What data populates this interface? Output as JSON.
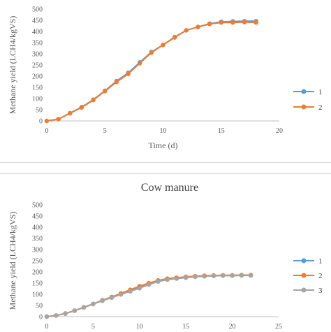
{
  "chart_data": [
    {
      "type": "line",
      "title": "",
      "xlabel": "Time  (d)",
      "ylabel": "Methane yield (LCH4/kgVS)",
      "xlim": [
        0,
        20
      ],
      "ylim": [
        0,
        500
      ],
      "xticks": [
        0,
        5,
        10,
        15,
        20
      ],
      "yticks": [
        0,
        50,
        100,
        150,
        200,
        250,
        300,
        350,
        400,
        450,
        500
      ],
      "grid": false,
      "legend": "right",
      "series": [
        {
          "name": "1",
          "color": "#5b9bd5",
          "x": [
            0,
            1,
            2,
            3,
            4,
            5,
            6,
            7,
            8,
            9,
            10,
            11,
            12,
            13,
            14,
            15,
            16,
            17,
            18
          ],
          "y": [
            0,
            8,
            35,
            62,
            95,
            135,
            178,
            215,
            262,
            308,
            340,
            375,
            405,
            420,
            435,
            443,
            445,
            446,
            446
          ]
        },
        {
          "name": "2",
          "color": "#ed7d31",
          "x": [
            0,
            1,
            2,
            3,
            4,
            5,
            6,
            7,
            8,
            9,
            10,
            11,
            12,
            13,
            14,
            15,
            16,
            17,
            18
          ],
          "y": [
            0,
            8,
            34,
            60,
            93,
            133,
            174,
            210,
            258,
            305,
            340,
            373,
            405,
            420,
            433,
            440,
            440,
            442,
            440
          ]
        }
      ]
    },
    {
      "type": "line",
      "title": "Cow manure",
      "xlabel": "",
      "ylabel": "Methane yield (LCH4/kgVS)",
      "xlim": [
        0,
        25
      ],
      "ylim": [
        0,
        500
      ],
      "xticks": [
        0,
        5,
        10,
        15,
        20,
        25
      ],
      "yticks": [
        0,
        50,
        100,
        150,
        200,
        250,
        300,
        350,
        400,
        450,
        500
      ],
      "grid": false,
      "legend": "right",
      "series": [
        {
          "name": "1",
          "color": "#5b9bd5",
          "x": [
            0,
            1,
            2,
            3,
            4,
            5,
            6,
            7,
            8,
            9,
            10,
            11,
            12,
            13,
            14,
            15,
            16,
            17,
            18,
            19,
            20,
            21,
            22
          ],
          "y": [
            0,
            5,
            14,
            27,
            42,
            57,
            73,
            87,
            102,
            118,
            134,
            148,
            160,
            168,
            172,
            176,
            180,
            182,
            183,
            184,
            184,
            185,
            185
          ]
        },
        {
          "name": "2",
          "color": "#ed7d31",
          "x": [
            0,
            1,
            2,
            3,
            4,
            5,
            6,
            7,
            8,
            9,
            10,
            11,
            12,
            13,
            14,
            15,
            16,
            17,
            18,
            19,
            20,
            21,
            22
          ],
          "y": [
            0,
            5,
            14,
            27,
            42,
            57,
            73,
            88,
            104,
            120,
            136,
            150,
            162,
            170,
            174,
            178,
            181,
            183,
            184,
            185,
            185,
            186,
            186
          ]
        },
        {
          "name": "3",
          "color": "#a5a5a5",
          "x": [
            0,
            1,
            2,
            3,
            4,
            5,
            6,
            7,
            8,
            9,
            10,
            11,
            12,
            13,
            14,
            15,
            16,
            17,
            18,
            19,
            20,
            21,
            22
          ],
          "y": [
            0,
            5,
            13,
            26,
            41,
            56,
            71,
            85,
            99,
            113,
            127,
            143,
            157,
            165,
            170,
            174,
            178,
            180,
            182,
            183,
            183,
            184,
            184
          ]
        }
      ]
    }
  ]
}
